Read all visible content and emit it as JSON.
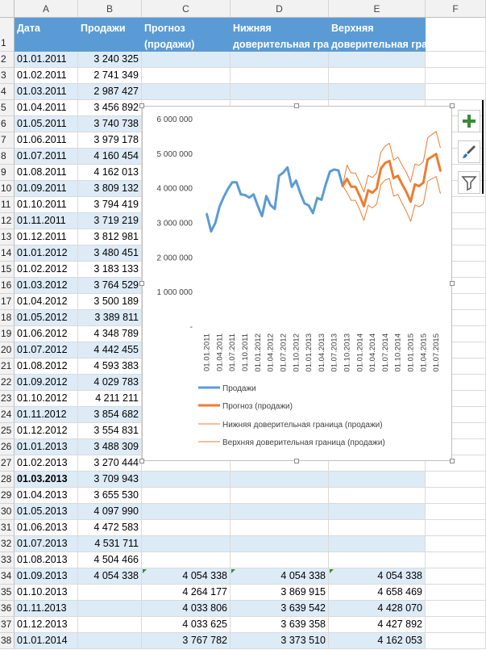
{
  "columns": [
    "A",
    "B",
    "C",
    "D",
    "E",
    "F"
  ],
  "header_row": {
    "row_number": "1",
    "cells": [
      {
        "line1": "Дата",
        "line2": ""
      },
      {
        "line1": "Продажи",
        "line2": ""
      },
      {
        "line1": "Прогноз",
        "line2": "(продажи)"
      },
      {
        "line1": "Нижняя",
        "line2": "доверительная гра"
      },
      {
        "line1": "Верхняя",
        "line2": "доверительная гра"
      }
    ]
  },
  "rows": [
    {
      "num": "2",
      "date": "01.01.2011",
      "sales": "3 240 325",
      "forecast": "",
      "lower": "",
      "upper": ""
    },
    {
      "num": "3",
      "date": "01.02.2011",
      "sales": "2 741 349",
      "forecast": "",
      "lower": "",
      "upper": ""
    },
    {
      "num": "4",
      "date": "01.03.2011",
      "sales": "2 987 427",
      "forecast": "",
      "lower": "",
      "upper": ""
    },
    {
      "num": "5",
      "date": "01.04.2011",
      "sales": "3 456 892",
      "forecast": "",
      "lower": "",
      "upper": ""
    },
    {
      "num": "6",
      "date": "01.05.2011",
      "sales": "3 740 738",
      "forecast": "",
      "lower": "",
      "upper": ""
    },
    {
      "num": "7",
      "date": "01.06.2011",
      "sales": "3 979 178",
      "forecast": "",
      "lower": "",
      "upper": ""
    },
    {
      "num": "8",
      "date": "01.07.2011",
      "sales": "4 160 454",
      "forecast": "",
      "lower": "",
      "upper": ""
    },
    {
      "num": "9",
      "date": "01.08.2011",
      "sales": "4 162 013",
      "forecast": "",
      "lower": "",
      "upper": ""
    },
    {
      "num": "10",
      "date": "01.09.2011",
      "sales": "3 809 132",
      "forecast": "",
      "lower": "",
      "upper": ""
    },
    {
      "num": "11",
      "date": "01.10.2011",
      "sales": "3 794 419",
      "forecast": "",
      "lower": "",
      "upper": ""
    },
    {
      "num": "12",
      "date": "01.11.2011",
      "sales": "3 719 219",
      "forecast": "",
      "lower": "",
      "upper": ""
    },
    {
      "num": "13",
      "date": "01.12.2011",
      "sales": "3 812 981",
      "forecast": "",
      "lower": "",
      "upper": ""
    },
    {
      "num": "14",
      "date": "01.01.2012",
      "sales": "3 480 451",
      "forecast": "",
      "lower": "",
      "upper": ""
    },
    {
      "num": "15",
      "date": "01.02.2012",
      "sales": "3 183 133",
      "forecast": "",
      "lower": "",
      "upper": ""
    },
    {
      "num": "16",
      "date": "01.03.2012",
      "sales": "3 764 529",
      "forecast": "",
      "lower": "",
      "upper": ""
    },
    {
      "num": "17",
      "date": "01.04.2012",
      "sales": "3 500 189",
      "forecast": "",
      "lower": "",
      "upper": ""
    },
    {
      "num": "18",
      "date": "01.05.2012",
      "sales": "3 389 811",
      "forecast": "",
      "lower": "",
      "upper": ""
    },
    {
      "num": "19",
      "date": "01.06.2012",
      "sales": "4 348 789",
      "forecast": "",
      "lower": "",
      "upper": ""
    },
    {
      "num": "20",
      "date": "01.07.2012",
      "sales": "4 442 455",
      "forecast": "",
      "lower": "",
      "upper": ""
    },
    {
      "num": "21",
      "date": "01.08.2012",
      "sales": "4 593 383",
      "forecast": "",
      "lower": "",
      "upper": ""
    },
    {
      "num": "22",
      "date": "01.09.2012",
      "sales": "4 029 783",
      "forecast": "",
      "lower": "",
      "upper": ""
    },
    {
      "num": "23",
      "date": "01.10.2012",
      "sales": "4 211 211",
      "forecast": "",
      "lower": "",
      "upper": ""
    },
    {
      "num": "24",
      "date": "01.11.2012",
      "sales": "3 854 682",
      "forecast": "",
      "lower": "",
      "upper": ""
    },
    {
      "num": "25",
      "date": "01.12.2012",
      "sales": "3 554 831",
      "forecast": "",
      "lower": "",
      "upper": ""
    },
    {
      "num": "26",
      "date": "01.01.2013",
      "sales": "3 488 309",
      "forecast": "",
      "lower": "",
      "upper": ""
    },
    {
      "num": "27",
      "date": "01.02.2013",
      "sales": "3 270 444",
      "forecast": "",
      "lower": "",
      "upper": ""
    },
    {
      "num": "28",
      "date": "01.03.2013",
      "sales": "3 709 943",
      "forecast": "",
      "lower": "",
      "upper": ""
    },
    {
      "num": "29",
      "date": "01.04.2013",
      "sales": "3 655 530",
      "forecast": "",
      "lower": "",
      "upper": ""
    },
    {
      "num": "30",
      "date": "01.05.2013",
      "sales": "4 097 990",
      "forecast": "",
      "lower": "",
      "upper": ""
    },
    {
      "num": "31",
      "date": "01.06.2013",
      "sales": "4 472 583",
      "forecast": "",
      "lower": "",
      "upper": ""
    },
    {
      "num": "32",
      "date": "01.07.2013",
      "sales": "4 531 711",
      "forecast": "",
      "lower": "",
      "upper": ""
    },
    {
      "num": "33",
      "date": "01.08.2013",
      "sales": "4 504 466",
      "forecast": "",
      "lower": "",
      "upper": ""
    },
    {
      "num": "34",
      "date": "01.09.2013",
      "sales": "4 054 338",
      "forecast": "4 054 338",
      "lower": "4 054 338",
      "upper": "4 054 338"
    },
    {
      "num": "35",
      "date": "01.10.2013",
      "sales": "",
      "forecast": "4 264 177",
      "lower": "3 869 915",
      "upper": "4 658 469"
    },
    {
      "num": "36",
      "date": "01.11.2013",
      "sales": "",
      "forecast": "4 033 806",
      "lower": "3 639 542",
      "upper": "4 428 070"
    },
    {
      "num": "37",
      "date": "01.12.2013",
      "sales": "",
      "forecast": "4 033 625",
      "lower": "3 639 358",
      "upper": "4 427 892"
    },
    {
      "num": "38",
      "date": "01.01.2014",
      "sales": "",
      "forecast": "3 767 782",
      "lower": "3 373 510",
      "upper": "4 162 053"
    }
  ],
  "chart_data": {
    "type": "line",
    "title": "",
    "ylim": [
      0,
      6000000
    ],
    "y_ticks": [
      "6 000 000",
      "5 000 000",
      "4 000 000",
      "3 000 000",
      "2 000 000",
      "1 000 000",
      "-"
    ],
    "y_tick_values": [
      6000000,
      5000000,
      4000000,
      3000000,
      2000000,
      1000000,
      0
    ],
    "x_tick_labels": [
      "01.01.2011",
      "01.04.2011",
      "01.07.2011",
      "01.10.2011",
      "01.01.2012",
      "01.04.2012",
      "01.07.2012",
      "01.10.2012",
      "01.01.2013",
      "01.04.2013",
      "01.07.2013",
      "01.10.2013",
      "01.01.2014",
      "01.04.2014",
      "01.07.2014",
      "01.10.2014",
      "01.01.2015",
      "01.04.2015",
      "01.07.2015"
    ],
    "x_tick_every": 3,
    "grid": false,
    "legend_position": "bottom",
    "series": [
      {
        "name": "Продажи",
        "color": "#5b9bd5",
        "width": 3,
        "start": 0,
        "values": [
          3240325,
          2741349,
          2987427,
          3456892,
          3740738,
          3979178,
          4160454,
          4162013,
          3809132,
          3794419,
          3719219,
          3812981,
          3480451,
          3183133,
          3764529,
          3500189,
          3389811,
          4348789,
          4442455,
          4593383,
          4029783,
          4211211,
          3854682,
          3554831,
          3488309,
          3270444,
          3709943,
          3655530,
          4097990,
          4472583,
          4531711,
          4504466,
          4054338
        ]
      },
      {
        "name": "Прогноз (продажи)",
        "color": "#ed7d31",
        "width": 3,
        "start": 32,
        "values": [
          4054338,
          4264177,
          4033806,
          4033625,
          3767782,
          3470000,
          3930000,
          3860000,
          3980000,
          4560000,
          4720000,
          4780000,
          4280000,
          4350000,
          4100000,
          3880000,
          3600000,
          4100000,
          4050000,
          4150000,
          4820000,
          4900000,
          4980000,
          4500000
        ]
      },
      {
        "name": "Нижняя доверительная граница (продажи)",
        "color": "#ed7d31",
        "width": 1,
        "start": 32,
        "values": [
          4054338,
          3869915,
          3639542,
          3639358,
          3373510,
          3060000,
          3500000,
          3420000,
          3530000,
          4090000,
          4230000,
          4270000,
          3760000,
          3810000,
          3550000,
          3320000,
          3030000,
          3510000,
          3450000,
          3540000,
          4190000,
          4260000,
          4330000,
          3840000
        ]
      },
      {
        "name": "Верхняя доверительная граница (продажи)",
        "color": "#ed7d31",
        "width": 1,
        "start": 32,
        "values": [
          4054338,
          4658469,
          4428070,
          4427892,
          4162053,
          3880000,
          4360000,
          4300000,
          4430000,
          5030000,
          5210000,
          5290000,
          4800000,
          4890000,
          4650000,
          4440000,
          4170000,
          4690000,
          4650000,
          4760000,
          5450000,
          5540000,
          5630000,
          5160000
        ]
      }
    ]
  }
}
